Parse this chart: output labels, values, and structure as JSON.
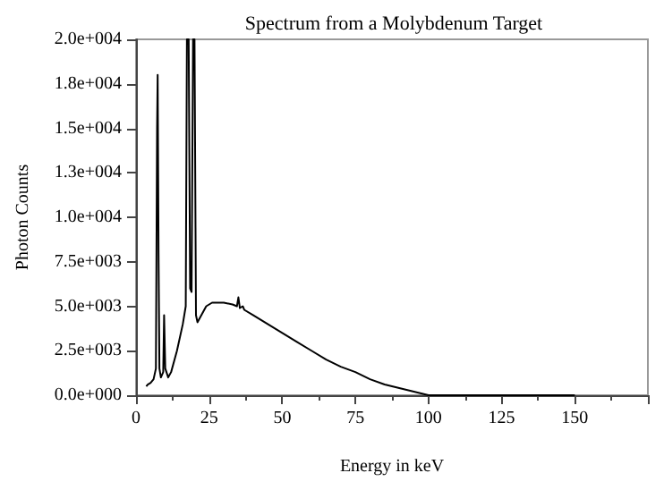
{
  "chart_data": {
    "type": "line",
    "title": "Spectrum from a Molybdenum Target",
    "xlabel": "Energy in keV",
    "ylabel": "Photon Counts",
    "x": [
      3.5,
      4,
      5,
      6,
      6.8,
      7.2,
      7.4,
      7.7,
      8,
      8.5,
      9.3,
      9.6,
      10,
      11,
      12,
      14,
      16,
      17,
      17.4,
      18,
      18.5,
      19,
      19.5,
      20,
      20.5,
      21,
      22,
      24,
      26,
      28,
      30,
      33,
      34.5,
      35,
      35.5,
      36.5,
      37,
      40,
      45,
      50,
      55,
      60,
      65,
      70,
      75,
      80,
      85,
      90,
      95,
      100,
      105,
      110,
      120,
      130,
      140,
      150
    ],
    "series": [
      {
        "color": "#000000",
        "values": [
          500,
          600,
          700,
          900,
          1500,
          15000,
          18000,
          8000,
          1500,
          1000,
          1300,
          4500,
          1500,
          1000,
          1300,
          2500,
          4000,
          5000,
          20000,
          20000,
          6000,
          5800,
          20000,
          20000,
          4500,
          4100,
          4400,
          5000,
          5200,
          5200,
          5200,
          5100,
          5000,
          5500,
          4900,
          5000,
          4800,
          4500,
          4000,
          3500,
          3000,
          2500,
          2000,
          1600,
          1300,
          900,
          600,
          400,
          200,
          0,
          0,
          0,
          0,
          0,
          0,
          0
        ]
      }
    ],
    "xlim": [
      0,
      175
    ],
    "xticks": [
      0,
      25,
      50,
      75,
      100,
      125,
      150
    ],
    "ylim": [
      0,
      20000
    ],
    "yticks": [
      {
        "value": 0,
        "label": "0.0e+000"
      },
      {
        "value": 2500,
        "label": "2.5e+003"
      },
      {
        "value": 5000,
        "label": "5.0e+003"
      },
      {
        "value": 7500,
        "label": "7.5e+003"
      },
      {
        "value": 10000,
        "label": "1.0e+004"
      },
      {
        "value": 12500,
        "label": "1.3e+004"
      },
      {
        "value": 15000,
        "label": "1.5e+004"
      },
      {
        "value": 17500,
        "label": "1.8e+004"
      },
      {
        "value": 20000,
        "label": "2.0e+004"
      }
    ],
    "grid": false,
    "marker": "none",
    "line_style": "solid"
  }
}
